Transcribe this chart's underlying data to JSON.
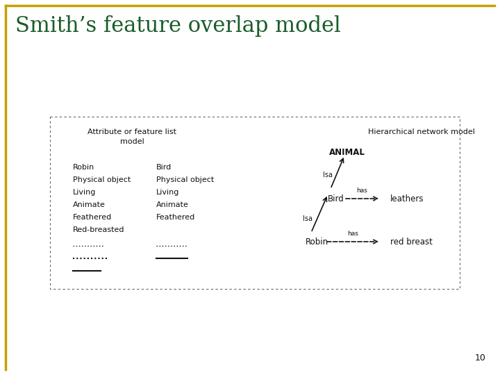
{
  "title": "Smith’s feature overlap model",
  "title_color": "#1a5c2a",
  "title_fontsize": 22,
  "border_color": "#c8a000",
  "page_number": "10",
  "box_color": "#666666",
  "background_color": "#ffffff",
  "left_header": "Attribute or feature list\nmodel",
  "right_header": "Hierarchical network model",
  "robin_list": [
    "Robin",
    "Physical object",
    "Living",
    "Animate",
    "Feathered",
    "Red-breasted"
  ],
  "bird_list": [
    "Bird",
    "Physical object",
    "Living",
    "Animate",
    "Feathered"
  ],
  "arrow_color": "#222222"
}
